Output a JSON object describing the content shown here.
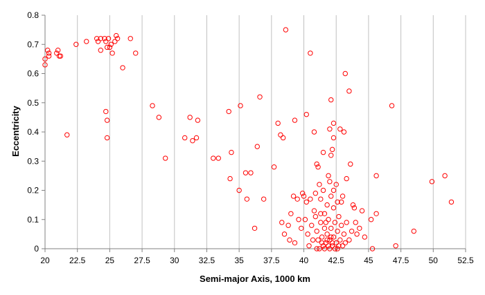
{
  "chart_data": {
    "type": "scatter",
    "title": "",
    "xlabel": "Semi-major Axis, 1000 km",
    "ylabel": "Eccentricity",
    "xlim": [
      20,
      52.5
    ],
    "ylim": [
      0,
      0.8
    ],
    "x_ticks": [
      20,
      22.5,
      25,
      27.5,
      30,
      32.5,
      35,
      37.5,
      40,
      42.5,
      45,
      47.5,
      50,
      52.5
    ],
    "x_tick_labels": [
      "20",
      "22.5",
      "25",
      "27.5",
      "30",
      "32.5",
      "35",
      "37.5",
      "40",
      "42.5",
      "45",
      "47.5",
      "50",
      "52.5"
    ],
    "y_ticks": [
      0,
      0.1,
      0.2,
      0.3,
      0.4,
      0.5,
      0.6,
      0.7,
      0.8
    ],
    "y_tick_labels": [
      "0",
      "0.1",
      "0.2",
      "0.3",
      "0.4",
      "0.5",
      "0.6",
      "0.7",
      "0.8"
    ],
    "grid": "vertical",
    "marker": "open-circle",
    "colors": {
      "marker": "#ff0000",
      "grid": "#c0c0c0",
      "axis": "#808080"
    },
    "series": [
      {
        "points": [
          [
            20.0,
            0.65
          ],
          [
            20.0,
            0.63
          ],
          [
            20.2,
            0.68
          ],
          [
            20.3,
            0.67
          ],
          [
            20.3,
            0.66
          ],
          [
            20.9,
            0.67
          ],
          [
            21.0,
            0.68
          ],
          [
            21.1,
            0.66
          ],
          [
            21.2,
            0.66
          ],
          [
            21.7,
            0.39
          ],
          [
            22.4,
            0.7
          ],
          [
            23.2,
            0.71
          ],
          [
            24.0,
            0.72
          ],
          [
            24.1,
            0.71
          ],
          [
            24.3,
            0.72
          ],
          [
            24.3,
            0.68
          ],
          [
            24.6,
            0.72
          ],
          [
            24.7,
            0.71
          ],
          [
            24.8,
            0.69
          ],
          [
            24.9,
            0.72
          ],
          [
            25.0,
            0.69
          ],
          [
            25.1,
            0.7
          ],
          [
            25.2,
            0.67
          ],
          [
            25.4,
            0.71
          ],
          [
            25.5,
            0.73
          ],
          [
            25.6,
            0.72
          ],
          [
            26.0,
            0.62
          ],
          [
            26.6,
            0.72
          ],
          [
            27.0,
            0.67
          ],
          [
            24.7,
            0.47
          ],
          [
            24.8,
            0.44
          ],
          [
            24.8,
            0.38
          ],
          [
            28.3,
            0.49
          ],
          [
            28.8,
            0.45
          ],
          [
            29.3,
            0.31
          ],
          [
            30.8,
            0.38
          ],
          [
            31.2,
            0.45
          ],
          [
            31.4,
            0.37
          ],
          [
            31.7,
            0.38
          ],
          [
            31.8,
            0.44
          ],
          [
            33.0,
            0.31
          ],
          [
            33.4,
            0.31
          ],
          [
            34.2,
            0.47
          ],
          [
            34.4,
            0.33
          ],
          [
            34.3,
            0.24
          ],
          [
            35.0,
            0.2
          ],
          [
            35.1,
            0.49
          ],
          [
            35.5,
            0.26
          ],
          [
            35.6,
            0.17
          ],
          [
            35.9,
            0.26
          ],
          [
            36.2,
            0.07
          ],
          [
            36.4,
            0.35
          ],
          [
            36.6,
            0.52
          ],
          [
            36.9,
            0.17
          ],
          [
            37.7,
            0.28
          ],
          [
            38.0,
            0.43
          ],
          [
            38.2,
            0.39
          ],
          [
            38.4,
            0.38
          ],
          [
            38.6,
            0.75
          ],
          [
            39.3,
            0.44
          ],
          [
            40.2,
            0.46
          ],
          [
            40.5,
            0.67
          ],
          [
            40.8,
            0.4
          ],
          [
            41.0,
            0.29
          ],
          [
            41.1,
            0.28
          ],
          [
            41.5,
            0.33
          ],
          [
            41.5,
            0.2
          ],
          [
            41.9,
            0.25
          ],
          [
            42.0,
            0.41
          ],
          [
            42.1,
            0.51
          ],
          [
            42.3,
            0.38
          ],
          [
            42.2,
            0.34
          ],
          [
            42.1,
            0.32
          ],
          [
            42.3,
            0.43
          ],
          [
            42.8,
            0.41
          ],
          [
            43.1,
            0.4
          ],
          [
            43.2,
            0.6
          ],
          [
            43.5,
            0.54
          ],
          [
            43.6,
            0.29
          ],
          [
            43.3,
            0.24
          ],
          [
            43.0,
            0.18
          ],
          [
            42.9,
            0.16
          ],
          [
            42.5,
            0.22
          ],
          [
            42.3,
            0.2
          ],
          [
            42.1,
            0.18
          ],
          [
            41.8,
            0.15
          ],
          [
            41.6,
            0.12
          ],
          [
            41.2,
            0.22
          ],
          [
            40.9,
            0.19
          ],
          [
            40.5,
            0.17
          ],
          [
            40.2,
            0.16
          ],
          [
            40.0,
            0.18
          ],
          [
            39.9,
            0.19
          ],
          [
            39.5,
            0.17
          ],
          [
            39.2,
            0.18
          ],
          [
            39.0,
            0.12
          ],
          [
            38.8,
            0.08
          ],
          [
            38.5,
            0.05
          ],
          [
            38.3,
            0.09
          ],
          [
            38.9,
            0.03
          ],
          [
            39.3,
            0.02
          ],
          [
            39.6,
            0.1
          ],
          [
            39.8,
            0.07
          ],
          [
            40.1,
            0.1
          ],
          [
            40.3,
            0.05
          ],
          [
            40.6,
            0.08
          ],
          [
            40.8,
            0.13
          ],
          [
            41.0,
            0.06
          ],
          [
            41.1,
            0.03
          ],
          [
            41.3,
            0.09
          ],
          [
            41.4,
            0.04
          ],
          [
            41.6,
            0.07
          ],
          [
            41.7,
            0.02
          ],
          [
            41.8,
            0.05
          ],
          [
            41.9,
            0.1
          ],
          [
            42.0,
            0.03
          ],
          [
            42.1,
            0.07
          ],
          [
            42.2,
            0.01
          ],
          [
            42.3,
            0.04
          ],
          [
            42.4,
            0.09
          ],
          [
            42.5,
            0.02
          ],
          [
            42.6,
            0.06
          ],
          [
            42.7,
            0.11
          ],
          [
            42.8,
            0.03
          ],
          [
            42.9,
            0.08
          ],
          [
            43.0,
            0.01
          ],
          [
            43.1,
            0.05
          ],
          [
            43.3,
            0.09
          ],
          [
            43.5,
            0.03
          ],
          [
            43.7,
            0.06
          ],
          [
            43.9,
            0.14
          ],
          [
            44.1,
            0.05
          ],
          [
            44.3,
            0.07
          ],
          [
            44.5,
            0.13
          ],
          [
            44.7,
            0.04
          ],
          [
            45.2,
            0.1
          ],
          [
            45.3,
            0.0
          ],
          [
            45.6,
            0.25
          ],
          [
            45.6,
            0.12
          ],
          [
            46.8,
            0.49
          ],
          [
            47.1,
            0.01
          ],
          [
            48.5,
            0.06
          ],
          [
            49.9,
            0.23
          ],
          [
            50.9,
            0.25
          ],
          [
            51.4,
            0.16
          ],
          [
            41.0,
            0.0
          ],
          [
            41.5,
            0.01
          ],
          [
            42.0,
            0.0
          ],
          [
            42.2,
            0.02
          ],
          [
            42.4,
            0.0
          ],
          [
            41.8,
            0.03
          ],
          [
            41.6,
            0.0
          ],
          [
            41.9,
            0.01
          ],
          [
            42.1,
            0.04
          ],
          [
            41.4,
            0.02
          ],
          [
            41.2,
            0.0
          ],
          [
            40.7,
            0.03
          ],
          [
            40.4,
            0.01
          ],
          [
            42.6,
            0.0
          ],
          [
            42.7,
            0.01
          ],
          [
            43.2,
            0.02
          ],
          [
            41.3,
            0.12
          ],
          [
            41.7,
            0.09
          ],
          [
            42.3,
            0.14
          ],
          [
            42.6,
            0.16
          ],
          [
            40.9,
            0.11
          ],
          [
            43.8,
            0.15
          ],
          [
            44.0,
            0.09
          ],
          [
            42.0,
            0.23
          ],
          [
            41.3,
            0.17
          ]
        ]
      }
    ]
  }
}
